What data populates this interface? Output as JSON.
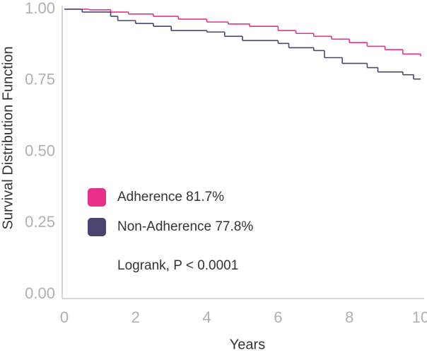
{
  "chart_data": {
    "type": "line",
    "step": "post",
    "xlabel": "Years",
    "ylabel": "Survival Distribution Function",
    "xlim": [
      0,
      10
    ],
    "ylim": [
      0,
      1
    ],
    "xticks": [
      0,
      2,
      4,
      6,
      8,
      10
    ],
    "yticks": [
      {
        "value": 0,
        "label": "0.00"
      },
      0.25,
      {
        "value": 0.5,
        "label": "0.50"
      },
      0.75,
      {
        "value": 1,
        "label": "1.00"
      }
    ],
    "series": [
      {
        "name": "Adherence 81.7%",
        "color": "#e8308a",
        "x": [
          0,
          0.7,
          1.3,
          1.8,
          2.5,
          3.2,
          4,
          4.6,
          5.2,
          6,
          6.5,
          7,
          7.5,
          8,
          8.5,
          9,
          9.5,
          10
        ],
        "values": [
          1.0,
          0.998,
          0.99,
          0.983,
          0.975,
          0.965,
          0.955,
          0.948,
          0.94,
          0.925,
          0.915,
          0.905,
          0.895,
          0.883,
          0.87,
          0.858,
          0.843,
          0.835
        ]
      },
      {
        "name": "Non-Adherence 77.8%",
        "color": "#4b4470",
        "x": [
          0,
          0.5,
          1.3,
          1.5,
          2,
          2.5,
          3,
          4,
          4.5,
          5,
          6,
          6.3,
          7,
          7.3,
          7.8,
          8.5,
          8.8,
          9.5,
          9.8,
          10
        ],
        "values": [
          1.0,
          0.99,
          0.975,
          0.96,
          0.95,
          0.94,
          0.925,
          0.92,
          0.905,
          0.89,
          0.88,
          0.865,
          0.855,
          0.83,
          0.81,
          0.795,
          0.78,
          0.77,
          0.755,
          0.755
        ]
      }
    ],
    "annotation": "Logrank, P < 0.0001"
  }
}
